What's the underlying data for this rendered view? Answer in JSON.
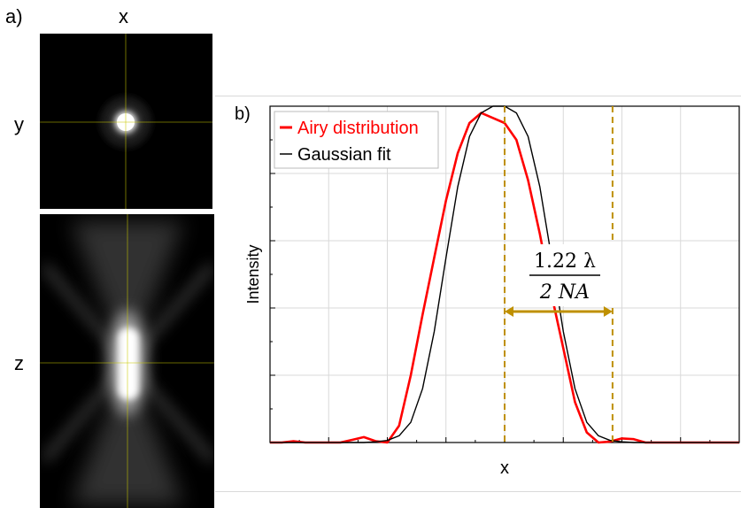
{
  "panel_a": {
    "label": "a)",
    "xy_view": {
      "horizontal_axis": "x",
      "vertical_axis": "y"
    },
    "xz_view": {
      "vertical_axis": "z"
    }
  },
  "panel_b": {
    "label": "b)"
  },
  "formula": {
    "numerator": "1.22 λ",
    "denominator": "2 NA"
  },
  "chart_data": {
    "type": "line",
    "title": "",
    "xlabel": "x",
    "ylabel": "Intensity",
    "xlim": [
      -1,
      1
    ],
    "ylim": [
      0,
      1
    ],
    "grid": true,
    "legend_position": "top-left",
    "markers": {
      "peak_x": 0,
      "half_width_x": 0.46
    },
    "series": [
      {
        "name": "Airy distribution",
        "color": "#ff0000",
        "x": [
          -1.0,
          -0.95,
          -0.9,
          -0.85,
          -0.8,
          -0.75,
          -0.7,
          -0.65,
          -0.6,
          -0.55,
          -0.5,
          -0.45,
          -0.4,
          -0.35,
          -0.3,
          -0.25,
          -0.2,
          -0.15,
          -0.1,
          -0.05,
          0.0,
          0.05,
          0.1,
          0.15,
          0.2,
          0.25,
          0.3,
          0.35,
          0.4,
          0.45,
          0.5,
          0.55,
          0.6,
          0.65,
          0.7,
          0.75,
          0.8,
          0.85,
          0.9,
          0.95,
          1.0
        ],
        "y": [
          0.0,
          0.0,
          0.004,
          0.0,
          0.0,
          0.0,
          0.0,
          0.008,
          0.016,
          0.004,
          0.0,
          0.05,
          0.2,
          0.38,
          0.55,
          0.72,
          0.86,
          0.95,
          0.98,
          0.965,
          0.95,
          0.9,
          0.78,
          0.62,
          0.44,
          0.28,
          0.12,
          0.03,
          0.0,
          0.003,
          0.012,
          0.01,
          0.0,
          0.0,
          0.0,
          0.0,
          0.0,
          0.0,
          0.0,
          0.0,
          0.0
        ]
      },
      {
        "name": "Gaussian fit",
        "color": "#000000",
        "x": [
          -1.0,
          -0.95,
          -0.9,
          -0.85,
          -0.8,
          -0.75,
          -0.7,
          -0.65,
          -0.6,
          -0.55,
          -0.5,
          -0.45,
          -0.4,
          -0.35,
          -0.3,
          -0.25,
          -0.2,
          -0.15,
          -0.1,
          -0.05,
          0.0,
          0.05,
          0.1,
          0.15,
          0.2,
          0.25,
          0.3,
          0.35,
          0.4,
          0.45,
          0.5,
          0.55,
          0.6,
          0.65,
          0.7,
          0.75,
          0.8,
          0.85,
          0.9,
          0.95,
          1.0
        ],
        "y": [
          0.0,
          0.0,
          0.0,
          0.0,
          0.0,
          0.0,
          0.0,
          0.0,
          0.0,
          0.002,
          0.006,
          0.02,
          0.06,
          0.16,
          0.33,
          0.55,
          0.76,
          0.91,
          0.98,
          1.0,
          1.0,
          0.98,
          0.91,
          0.76,
          0.55,
          0.33,
          0.16,
          0.06,
          0.02,
          0.006,
          0.002,
          0.0,
          0.0,
          0.0,
          0.0,
          0.0,
          0.0,
          0.0,
          0.0,
          0.0,
          0.0
        ]
      }
    ]
  },
  "colors": {
    "airy": "#ff0000",
    "gaussian": "#000000",
    "marker": "#bf9000",
    "crosshair": "#c8c800",
    "grid": "#d9d9d9"
  }
}
